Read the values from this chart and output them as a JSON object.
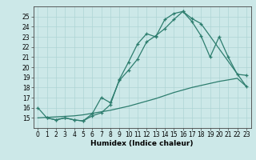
{
  "xlabel": "Humidex (Indice chaleur)",
  "bg_color": "#cce8e8",
  "line_color": "#2d7d6e",
  "xlim": [
    -0.5,
    23.5
  ],
  "ylim": [
    14,
    26
  ],
  "xticks": [
    0,
    1,
    2,
    3,
    4,
    5,
    6,
    7,
    8,
    9,
    10,
    11,
    12,
    13,
    14,
    15,
    16,
    17,
    18,
    19,
    20,
    21,
    22,
    23
  ],
  "yticks": [
    15,
    16,
    17,
    18,
    19,
    20,
    21,
    22,
    23,
    24,
    25
  ],
  "line1_x": [
    0,
    1,
    2,
    3,
    4,
    5,
    6,
    7,
    8,
    9,
    10,
    11,
    12,
    13,
    14,
    15,
    16,
    17,
    18,
    23
  ],
  "line1_y": [
    16.0,
    15.0,
    14.8,
    15.0,
    14.8,
    14.7,
    15.2,
    15.5,
    16.3,
    18.8,
    20.5,
    22.3,
    23.3,
    23.0,
    24.7,
    25.3,
    25.5,
    24.8,
    24.3,
    18.1
  ],
  "line2_x": [
    0,
    1,
    2,
    3,
    4,
    5,
    6,
    7,
    8,
    9,
    10,
    11,
    12,
    13,
    14,
    15,
    16,
    17,
    18,
    19,
    20,
    21,
    22,
    23
  ],
  "line2_y": [
    15.0,
    15.05,
    15.1,
    15.15,
    15.2,
    15.3,
    15.45,
    15.6,
    15.75,
    15.95,
    16.15,
    16.4,
    16.65,
    16.9,
    17.2,
    17.5,
    17.75,
    18.0,
    18.2,
    18.4,
    18.6,
    18.75,
    18.9,
    18.1
  ],
  "line3_x": [
    1,
    2,
    3,
    4,
    5,
    6,
    7,
    8,
    9,
    10,
    11,
    12,
    13,
    14,
    15,
    16,
    17,
    18,
    19,
    20,
    21,
    22,
    23
  ],
  "line3_y": [
    15.0,
    14.8,
    15.0,
    14.8,
    14.7,
    15.4,
    17.0,
    16.5,
    18.7,
    19.7,
    20.8,
    22.5,
    23.1,
    23.8,
    24.7,
    25.5,
    24.5,
    23.1,
    21.0,
    23.0,
    21.0,
    19.3,
    19.2
  ],
  "marker": "+",
  "grid_color": "#aed4d4",
  "tick_fontsize": 5.5,
  "xlabel_fontsize": 6.5
}
